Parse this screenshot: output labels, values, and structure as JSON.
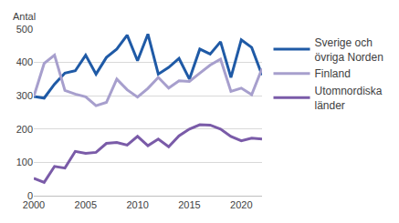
{
  "chart_data": {
    "type": "line",
    "ylabel": "Antal",
    "x": [
      2000,
      2001,
      2002,
      2003,
      2004,
      2005,
      2006,
      2007,
      2008,
      2009,
      2010,
      2011,
      2012,
      2013,
      2014,
      2015,
      2016,
      2017,
      2018,
      2019,
      2020,
      2021,
      2022
    ],
    "series": [
      {
        "name": "Sverige och övriga Norden",
        "color": "#1f5aa6",
        "values": [
          298,
          293,
          335,
          368,
          375,
          422,
          365,
          415,
          440,
          482,
          405,
          485,
          365,
          385,
          412,
          350,
          440,
          425,
          462,
          355,
          468,
          445,
          362
        ]
      },
      {
        "name": "Finland",
        "color": "#a79fcd",
        "values": [
          298,
          397,
          422,
          316,
          305,
          297,
          270,
          280,
          350,
          318,
          296,
          322,
          355,
          323,
          345,
          343,
          368,
          392,
          410,
          313,
          323,
          303,
          382
        ]
      },
      {
        "name": "Utomnordiska länder",
        "color": "#7a5ba8",
        "values": [
          52,
          40,
          88,
          83,
          133,
          127,
          130,
          157,
          160,
          152,
          178,
          150,
          170,
          147,
          180,
          200,
          213,
          212,
          200,
          178,
          165,
          173,
          170
        ]
      }
    ],
    "xlim": [
      2000,
      2022
    ],
    "xticks": [
      2000,
      2005,
      2010,
      2015,
      2020
    ],
    "ylim": [
      0,
      500
    ],
    "yticks": [
      0,
      100,
      200,
      300,
      400,
      500
    ],
    "grid": true,
    "legend": "right"
  }
}
